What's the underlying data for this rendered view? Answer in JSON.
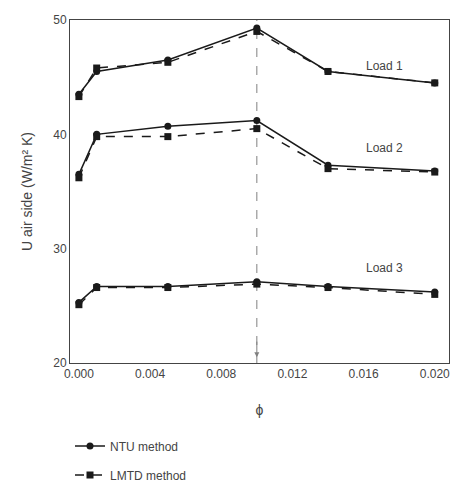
{
  "chart_data": {
    "type": "line",
    "xlabel": "ϕ",
    "ylabel": "U air side (W/m² K)",
    "x": [
      0.0,
      0.001,
      0.005,
      0.01,
      0.014,
      0.02
    ],
    "series": [
      {
        "name": "NTU method",
        "color": "#1a1a1a",
        "line_style": "solid",
        "marker": "circle",
        "values": [
          43.5,
          45.5,
          46.5,
          49.3,
          45.5,
          44.5
        ]
      },
      {
        "name": "NTU method",
        "color": "#1a1a1a",
        "line_style": "solid",
        "marker": "circle",
        "values": [
          36.5,
          40.0,
          40.7,
          41.2,
          37.3,
          36.8
        ]
      },
      {
        "name": "NTU method",
        "color": "#1a1a1a",
        "line_style": "solid",
        "marker": "circle",
        "values": [
          25.3,
          26.7,
          26.7,
          27.1,
          26.7,
          26.2
        ]
      },
      {
        "name": "LMTD method",
        "color": "#1a1a1a",
        "line_style": "dash",
        "marker": "square",
        "values": [
          43.3,
          45.8,
          46.3,
          49.0,
          45.5,
          44.5
        ]
      },
      {
        "name": "LMTD method",
        "color": "#1a1a1a",
        "line_style": "dash",
        "marker": "square",
        "values": [
          36.2,
          39.8,
          39.8,
          40.5,
          37.0,
          36.7
        ]
      },
      {
        "name": "LMTD method",
        "color": "#1a1a1a",
        "line_style": "dash",
        "marker": "square",
        "values": [
          25.1,
          26.6,
          26.6,
          26.9,
          26.6,
          26.0
        ]
      }
    ],
    "xlim": [
      -0.0005,
      0.0208
    ],
    "xticks": [
      {
        "value": 0.0,
        "label": "0.000"
      },
      0.004,
      0.008,
      0.012,
      0.016,
      {
        "value": 0.02,
        "label": "0.020"
      }
    ],
    "ylim": [
      20,
      50
    ],
    "yticks": [
      20,
      30,
      40,
      50
    ],
    "vlines": [
      {
        "x": 0.01,
        "color": "gray",
        "line_style": "dash"
      }
    ],
    "arrows": [
      {
        "x": 0.01,
        "y_start": 22.0,
        "y_end": 20.5,
        "color": "gray"
      }
    ],
    "annotations": [
      {
        "text": "Load 1",
        "x": 0.016,
        "y": 46.0
      },
      {
        "text": "Load 2",
        "x": 0.016,
        "y": 38.8
      },
      {
        "text": "Load 3",
        "x": 0.016,
        "y": 28.3
      }
    ],
    "grid": false,
    "legend": "bottom"
  }
}
